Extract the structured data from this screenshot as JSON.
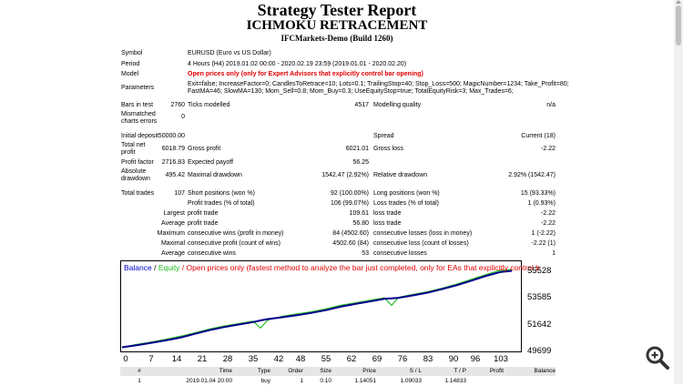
{
  "header": {
    "title": "Strategy Tester Report",
    "expert": "ICHMOKU RETRACEMENT",
    "server": "IFCMarkets-Demo (Build 1260)"
  },
  "settings": {
    "symbol_label": "Symbol",
    "symbol_value": "EURUSD (Euro vs US Dollar)",
    "period_label": "Period",
    "period_value": "4 Hours (H4) 2019.01.02 00:00 - 2020.02.19 23:59 (2019.01.01 - 2020.02.20)",
    "model_label": "Model",
    "model_value": "Open prices only (only for Expert Advisors that explicitly control bar opening)",
    "params_label": "Parameters",
    "params_line1": "Exit=false; IncreaseFactor=0; CandlesToRetrace=10; Lots=0.1; TrailingStop=40; Stop_Loss=500; MagicNumber=1234; Take_Profit=80;",
    "params_line2": "FastMA=46; SlowMA=130; Mom_Sell=0.8; Mom_Buy=0.3; UseEquityStop=true; TotalEquityRisk=3; Max_Trades=6;"
  },
  "quality": {
    "bars_label": "Bars in test",
    "bars_value": "2760",
    "ticks_label": "Ticks modelled",
    "ticks_value": "4517",
    "mq_label": "Modelling quality",
    "mq_value": "n/a",
    "mis_label1": "Mismatched",
    "mis_label2": "charts errors",
    "mis_value": "0"
  },
  "results": {
    "deposit_label": "Initial deposit",
    "deposit_value": "50000.00",
    "spread_label": "Spread",
    "spread_value": "Current (18)",
    "netprofit_label1": "Total net",
    "netprofit_label2": "profit",
    "netprofit_value": "6018.79",
    "grossprofit_label": "Gross profit",
    "grossprofit_value": "6021.01",
    "grossloss_label": "Gross loss",
    "grossloss_value": "-2.22",
    "pf_label": "Profit factor",
    "pf_value": "2716.83",
    "ep_label": "Expected payoff",
    "ep_value": "56.25",
    "absdd_label1": "Absolute",
    "absdd_label2": "drawdown",
    "absdd_value": "495.42",
    "maxdd_label": "Maximal drawdown",
    "maxdd_value": "1542.47 (2.92%)",
    "reldd_label": "Relative drawdown",
    "reldd_value": "2.92% (1542.47)",
    "trades_label": "Total trades",
    "trades_value": "107",
    "short_label": "Short positions (won %)",
    "short_value": "92 (100.00%)",
    "long_label": "Long positions (won %)",
    "long_value": "15 (93.33%)",
    "ptrades_label": "Profit trades (% of total)",
    "ptrades_value": "106 (99.07%)",
    "ltrades_label": "Loss trades (% of total)",
    "ltrades_value": "1 (0.93%)",
    "largest_label": "Largest",
    "lp_label": "profit trade",
    "lp_value": "109.61",
    "ll_label": "loss trade",
    "ll_value": "-2.22",
    "average_label": "Average",
    "ap_label": "profit trade",
    "ap_value": "56.80",
    "al_label": "loss trade",
    "al_value": "-2.22",
    "maximum_label": "Maximum",
    "mcw_label": "consecutive wins (profit in money)",
    "mcw_value": "84 (4502.60)",
    "mcl_label": "consecutive losses (loss in money)",
    "mcl_value": "1 (-2.22)",
    "maximal_label": "Maximal",
    "mcp_label": "consecutive profit (count of wins)",
    "mcp_value": "4502.60 (84)",
    "mcloss_label": "consecutive loss (count of losses)",
    "mcloss_value": "-2.22 (1)",
    "average2_label": "Average",
    "acw_label": "consecutive wins",
    "acw_value": "53",
    "acl_label": "consecutive losses",
    "acl_value": "1"
  },
  "chart_data": {
    "type": "line",
    "legend_balance": "Balance",
    "legend_sep": " / ",
    "legend_equity": "Equity",
    "legend_note": " / Open prices only (fastest method to analyze the bar just completed, only for EAs that explicitly control b",
    "colors": {
      "balance": "#00008b",
      "equity": "#22bb22",
      "note": "#e00000",
      "legend_text": "#0000cc"
    },
    "x_ticks": [
      "0",
      "7",
      "14",
      "21",
      "28",
      "35",
      "42",
      "48",
      "55",
      "62",
      "69",
      "76",
      "83",
      "90",
      "96",
      "103"
    ],
    "y_ticks": [
      "55528",
      "53585",
      "51642",
      "49699"
    ],
    "xlim": [
      0,
      107
    ],
    "ylim": [
      49699,
      55528
    ],
    "x": [
      0,
      4,
      8,
      12,
      16,
      20,
      24,
      28,
      32,
      36,
      38,
      40,
      44,
      48,
      52,
      56,
      60,
      64,
      68,
      72,
      74,
      76,
      80,
      84,
      88,
      92,
      96,
      100,
      104,
      107
    ],
    "balance": [
      50000,
      50150,
      50320,
      50500,
      50700,
      50980,
      51250,
      51470,
      51650,
      51830,
      51950,
      52050,
      52180,
      52330,
      52500,
      52700,
      52950,
      53150,
      53330,
      53520,
      53560,
      53600,
      53780,
      53980,
      54240,
      54520,
      54850,
      55200,
      55480,
      55560
    ],
    "equity": [
      50000,
      50200,
      50380,
      50580,
      50800,
      51050,
      51330,
      51550,
      51720,
      51900,
      51400,
      51980,
      52250,
      52420,
      52580,
      52800,
      53050,
      53230,
      53420,
      53600,
      53050,
      53650,
      53850,
      54050,
      54300,
      54600,
      54950,
      55300,
      55600,
      55650
    ]
  },
  "deals_table": {
    "headers": [
      "#",
      "Time",
      "Type",
      "Order",
      "Size",
      "Price",
      "S / L",
      "T / P",
      "Profit",
      "Balance"
    ],
    "row": [
      "1",
      "2019.01.04 20:00",
      "buy",
      "1",
      "0.10",
      "1.14051",
      "1.09033",
      "1.14833",
      "",
      ""
    ]
  }
}
